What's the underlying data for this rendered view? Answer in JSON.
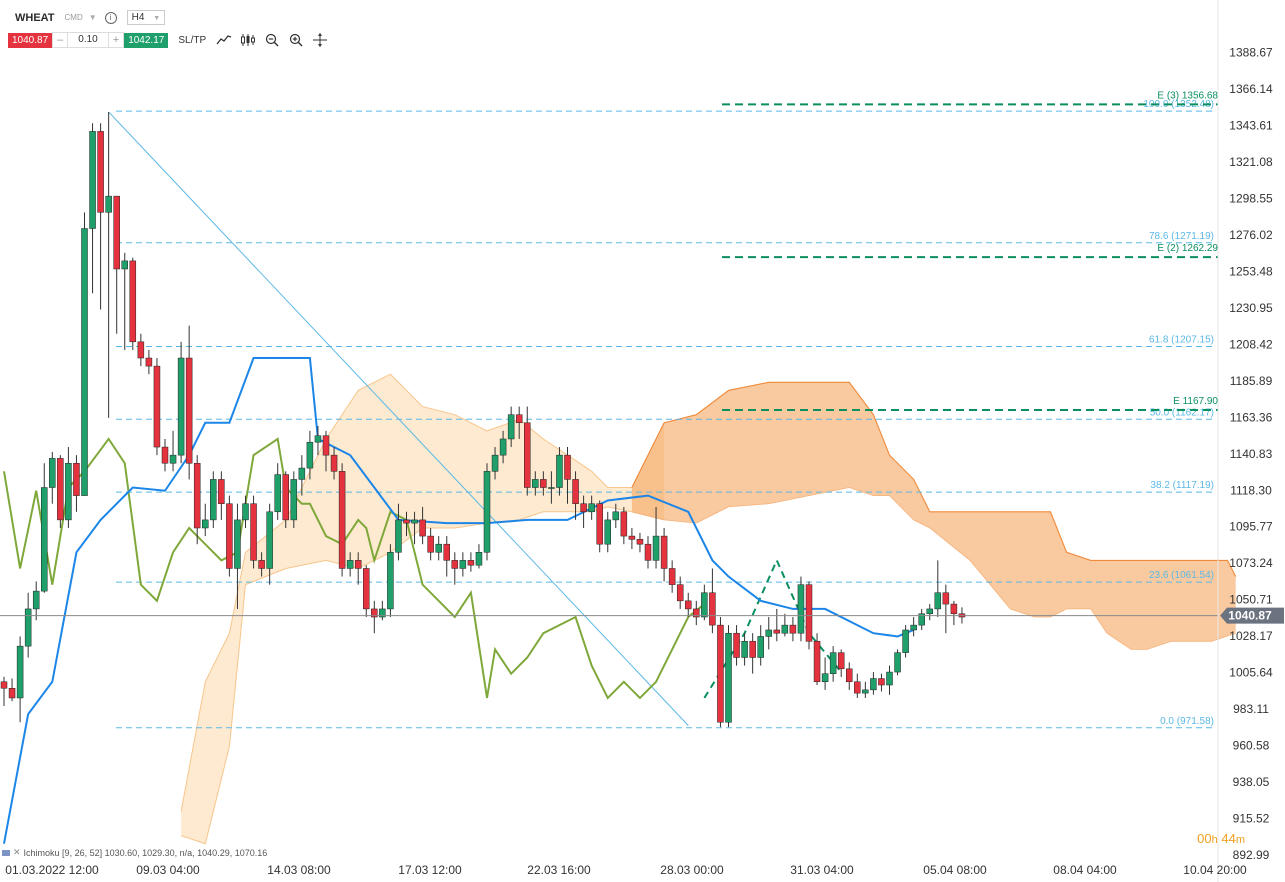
{
  "symbol": {
    "name": "WHEAT",
    "type": "CMD",
    "timeframe": "H4",
    "sell_price": "1040.87",
    "buy_price": "1042.17",
    "volume": "0.10",
    "sltp_label": "SL/TP",
    "minus": "–",
    "plus": "+"
  },
  "indicator": {
    "label": "Ichimoku [9, 26, 52] 1030.60, 1029.30, n/a, 1040.29, 1070.16",
    "close_glyph": "✕"
  },
  "timer": {
    "hours": "00",
    "h_unit": "h",
    "minutes": "44",
    "m_unit": "m"
  },
  "current_price_label": "1040.87",
  "chart_data": {
    "type": "candlestick",
    "instrument": "WHEAT",
    "timeframe": "H4",
    "ylim": [
      892.99,
      1400
    ],
    "y_ticks": [
      "1388.67",
      "1366.14",
      "1343.61",
      "1321.08",
      "1298.55",
      "1276.02",
      "1253.48",
      "1230.95",
      "1208.42",
      "1185.89",
      "1163.36",
      "1140.83",
      "1118.30",
      "1095.77",
      "1073.24",
      "1050.71",
      "1028.17",
      "1005.64",
      "983.11",
      "960.58",
      "938.05",
      "915.52",
      "892.99"
    ],
    "x_ticks": [
      "01.03.2022 12:00",
      "09.03 04:00",
      "14.03 08:00",
      "17.03 12:00",
      "22.03 16:00",
      "28.03 00:00",
      "31.03 04:00",
      "05.04 08:00",
      "08.04 04:00",
      "10.04 20:00"
    ],
    "colors": {
      "up": "#1fa06b",
      "down": "#e4333e",
      "tenkan": "#1c86e8",
      "chikou": "#7fa83a",
      "cloud_bull": "#fcd9aa",
      "cloud_bear": "#f5a55f",
      "fib": "#5bb8e6",
      "target": "#0c8f5e",
      "current": "#888888"
    },
    "fib_levels": [
      {
        "label": "100.0 (1352.48)",
        "value": 1352.48
      },
      {
        "label": "78.6 (1271.19)",
        "value": 1271.19
      },
      {
        "label": "61.8 (1207.15)",
        "value": 1207.15
      },
      {
        "label": "50.0 (1162.17)",
        "value": 1162.17
      },
      {
        "label": "38.2 (1117.19)",
        "value": 1117.19
      },
      {
        "label": "23.6 (1061.54)",
        "value": 1061.54
      },
      {
        "label": "0.0 (971.58)",
        "value": 971.58
      }
    ],
    "targets": [
      {
        "label": "E (3) 1356.68",
        "value": 1356.68
      },
      {
        "label": "E (2) 1262.29",
        "value": 1262.29
      },
      {
        "label": "E 1167.90",
        "value": 1167.9
      }
    ],
    "current_price": 1040.87,
    "candles": [
      [
        1000,
        996,
        1003,
        985
      ],
      [
        996,
        990,
        1002,
        988
      ],
      [
        990,
        1022,
        1028,
        975
      ],
      [
        1022,
        1045,
        1055,
        1015
      ],
      [
        1045,
        1056,
        1062,
        1038
      ],
      [
        1056,
        1120,
        1135,
        1055
      ],
      [
        1120,
        1138,
        1142,
        1110
      ],
      [
        1138,
        1100,
        1140,
        1095
      ],
      [
        1100,
        1135,
        1145,
        1095
      ],
      [
        1135,
        1115,
        1140,
        1105
      ],
      [
        1115,
        1280,
        1290,
        1210
      ],
      [
        1280,
        1340,
        1345,
        1240
      ],
      [
        1340,
        1290,
        1345,
        1230
      ],
      [
        1290,
        1300,
        1352,
        1163
      ],
      [
        1300,
        1255,
        1275,
        1215
      ],
      [
        1255,
        1260,
        1265,
        1205
      ],
      [
        1260,
        1210,
        1262,
        1205
      ],
      [
        1210,
        1200,
        1215,
        1195
      ],
      [
        1200,
        1195,
        1205,
        1190
      ],
      [
        1195,
        1145,
        1200,
        1140
      ],
      [
        1145,
        1135,
        1150,
        1130
      ],
      [
        1135,
        1140,
        1155,
        1130
      ],
      [
        1140,
        1200,
        1210,
        1135
      ],
      [
        1200,
        1135,
        1220,
        1125
      ],
      [
        1135,
        1095,
        1140,
        1085
      ],
      [
        1095,
        1100,
        1110,
        1090
      ],
      [
        1100,
        1125,
        1130,
        1095
      ],
      [
        1125,
        1110,
        1130,
        1100
      ],
      [
        1110,
        1070,
        1115,
        1065
      ],
      [
        1070,
        1100,
        1110,
        1045
      ],
      [
        1100,
        1110,
        1115,
        1095
      ],
      [
        1110,
        1075,
        1115,
        1070
      ],
      [
        1075,
        1070,
        1080,
        1065
      ],
      [
        1070,
        1105,
        1110,
        1060
      ],
      [
        1105,
        1128,
        1135,
        1100
      ],
      [
        1128,
        1100,
        1130,
        1095
      ],
      [
        1100,
        1125,
        1130,
        1095
      ],
      [
        1125,
        1132,
        1140,
        1115
      ],
      [
        1132,
        1148,
        1155,
        1125
      ],
      [
        1148,
        1152,
        1158,
        1140
      ],
      [
        1152,
        1140,
        1155,
        1130
      ],
      [
        1140,
        1130,
        1145,
        1125
      ],
      [
        1130,
        1070,
        1135,
        1065
      ],
      [
        1070,
        1075,
        1080,
        1065
      ],
      [
        1075,
        1070,
        1080,
        1060
      ],
      [
        1070,
        1045,
        1072,
        1040
      ],
      [
        1045,
        1040,
        1050,
        1030
      ],
      [
        1040,
        1045,
        1050,
        1038
      ],
      [
        1045,
        1080,
        1085,
        1040
      ],
      [
        1080,
        1100,
        1110,
        1075
      ],
      [
        1100,
        1098,
        1105,
        1090
      ],
      [
        1098,
        1100,
        1105,
        1085
      ],
      [
        1100,
        1090,
        1108,
        1085
      ],
      [
        1090,
        1080,
        1095,
        1075
      ],
      [
        1080,
        1085,
        1090,
        1075
      ],
      [
        1085,
        1075,
        1090,
        1065
      ],
      [
        1075,
        1070,
        1080,
        1060
      ],
      [
        1070,
        1075,
        1080,
        1065
      ],
      [
        1075,
        1072,
        1080,
        1068
      ],
      [
        1072,
        1080,
        1085,
        1070
      ],
      [
        1080,
        1130,
        1135,
        1075
      ],
      [
        1130,
        1140,
        1145,
        1125
      ],
      [
        1140,
        1150,
        1155,
        1135
      ],
      [
        1150,
        1165,
        1170,
        1145
      ],
      [
        1165,
        1160,
        1170,
        1150
      ],
      [
        1160,
        1120,
        1170,
        1115
      ],
      [
        1120,
        1125,
        1130,
        1115
      ],
      [
        1125,
        1120,
        1130,
        1115
      ],
      [
        1120,
        1120,
        1130,
        1110
      ],
      [
        1120,
        1140,
        1145,
        1115
      ],
      [
        1140,
        1125,
        1145,
        1110
      ],
      [
        1125,
        1110,
        1130,
        1100
      ],
      [
        1110,
        1105,
        1115,
        1095
      ],
      [
        1105,
        1110,
        1115,
        1100
      ],
      [
        1110,
        1085,
        1112,
        1080
      ],
      [
        1085,
        1100,
        1105,
        1080
      ],
      [
        1100,
        1105,
        1110,
        1095
      ],
      [
        1105,
        1090,
        1108,
        1085
      ],
      [
        1090,
        1088,
        1095,
        1082
      ],
      [
        1088,
        1085,
        1092,
        1080
      ],
      [
        1085,
        1075,
        1090,
        1070
      ],
      [
        1075,
        1090,
        1108,
        1070
      ],
      [
        1090,
        1070,
        1095,
        1062
      ],
      [
        1070,
        1060,
        1075,
        1055
      ],
      [
        1060,
        1050,
        1065,
        1045
      ],
      [
        1050,
        1045,
        1055,
        1040
      ],
      [
        1045,
        1040,
        1050,
        1035
      ],
      [
        1040,
        1055,
        1060,
        1038
      ],
      [
        1055,
        1035,
        1070,
        1030
      ],
      [
        1035,
        975,
        1040,
        972
      ],
      [
        975,
        1030,
        1035,
        972
      ],
      [
        1030,
        1015,
        1035,
        1010
      ],
      [
        1015,
        1025,
        1030,
        1010
      ],
      [
        1025,
        1015,
        1030,
        1005
      ],
      [
        1015,
        1028,
        1035,
        1010
      ],
      [
        1028,
        1032,
        1040,
        1020
      ],
      [
        1032,
        1030,
        1045,
        1025
      ],
      [
        1030,
        1035,
        1042,
        1028
      ],
      [
        1035,
        1030,
        1040,
        1025
      ],
      [
        1030,
        1060,
        1065,
        1025
      ],
      [
        1060,
        1025,
        1062,
        1020
      ],
      [
        1025,
        1000,
        1030,
        998
      ],
      [
        1000,
        1005,
        1015,
        995
      ],
      [
        1005,
        1018,
        1022,
        1000
      ],
      [
        1018,
        1008,
        1020,
        1003
      ],
      [
        1008,
        1000,
        1012,
        995
      ],
      [
        1000,
        993,
        1005,
        990
      ],
      [
        993,
        995,
        1000,
        990
      ],
      [
        995,
        1002,
        1006,
        992
      ],
      [
        1002,
        998,
        1005,
        994
      ],
      [
        998,
        1006,
        1010,
        992
      ],
      [
        1006,
        1018,
        1020,
        1004
      ],
      [
        1018,
        1032,
        1035,
        1015
      ],
      [
        1032,
        1035,
        1040,
        1028
      ],
      [
        1035,
        1042,
        1045,
        1032
      ],
      [
        1042,
        1045,
        1048,
        1038
      ],
      [
        1045,
        1055,
        1075,
        1040
      ],
      [
        1055,
        1048,
        1060,
        1030
      ],
      [
        1048,
        1042,
        1050,
        1035
      ],
      [
        1042,
        1040,
        1046,
        1036
      ]
    ],
    "cloud_top": [
      [
        22,
        920
      ],
      [
        25,
        1000
      ],
      [
        28,
        1030
      ],
      [
        30,
        1080
      ],
      [
        35,
        1100
      ],
      [
        40,
        1150
      ],
      [
        44,
        1180
      ],
      [
        48,
        1190
      ],
      [
        52,
        1170
      ],
      [
        56,
        1165
      ],
      [
        60,
        1155
      ],
      [
        64,
        1162
      ],
      [
        67,
        1150
      ],
      [
        70,
        1140
      ],
      [
        73,
        1130
      ],
      [
        75,
        1120
      ],
      [
        78,
        1120
      ],
      [
        82,
        1160
      ],
      [
        86,
        1165
      ],
      [
        90,
        1180
      ],
      [
        95,
        1185
      ],
      [
        100,
        1185
      ],
      [
        105,
        1185
      ],
      [
        108,
        1165
      ],
      [
        110,
        1140
      ],
      [
        113,
        1125
      ],
      [
        115,
        1105
      ],
      [
        120,
        1105
      ],
      [
        125,
        1105
      ],
      [
        130,
        1105
      ],
      [
        132,
        1080
      ],
      [
        135,
        1075
      ],
      [
        140,
        1075
      ],
      [
        145,
        1075
      ],
      [
        150,
        1075
      ],
      [
        152,
        1075
      ],
      [
        153,
        1065
      ]
    ],
    "cloud_bottom": [
      [
        22,
        905
      ],
      [
        25,
        900
      ],
      [
        28,
        960
      ],
      [
        30,
        1060
      ],
      [
        35,
        1070
      ],
      [
        40,
        1075
      ],
      [
        44,
        1070
      ],
      [
        48,
        1080
      ],
      [
        52,
        1095
      ],
      [
        56,
        1095
      ],
      [
        60,
        1098
      ],
      [
        64,
        1100
      ],
      [
        67,
        1105
      ],
      [
        70,
        1105
      ],
      [
        73,
        1105
      ],
      [
        75,
        1108
      ],
      [
        78,
        1105
      ],
      [
        82,
        1100
      ],
      [
        86,
        1098
      ],
      [
        90,
        1108
      ],
      [
        95,
        1110
      ],
      [
        100,
        1115
      ],
      [
        105,
        1120
      ],
      [
        108,
        1115
      ],
      [
        110,
        1115
      ],
      [
        113,
        1100
      ],
      [
        115,
        1095
      ],
      [
        120,
        1075
      ],
      [
        125,
        1045
      ],
      [
        128,
        1040
      ],
      [
        130,
        1040
      ],
      [
        132,
        1045
      ],
      [
        135,
        1045
      ],
      [
        137,
        1030
      ],
      [
        140,
        1020
      ],
      [
        142,
        1020
      ],
      [
        145,
        1025
      ],
      [
        150,
        1025
      ],
      [
        153,
        1030
      ]
    ],
    "tenkan": [
      [
        0,
        900
      ],
      [
        3,
        980
      ],
      [
        6,
        1000
      ],
      [
        9,
        1080
      ],
      [
        12,
        1100
      ],
      [
        16,
        1120
      ],
      [
        20,
        1118
      ],
      [
        23,
        1140
      ],
      [
        25,
        1160
      ],
      [
        28,
        1160
      ],
      [
        31,
        1200
      ],
      [
        38,
        1200
      ],
      [
        39,
        1150
      ],
      [
        43,
        1140
      ],
      [
        46,
        1120
      ],
      [
        49,
        1100
      ],
      [
        55,
        1098
      ],
      [
        60,
        1098
      ],
      [
        65,
        1100
      ],
      [
        70,
        1100
      ],
      [
        75,
        1112
      ],
      [
        80,
        1115
      ],
      [
        85,
        1105
      ],
      [
        88,
        1075
      ],
      [
        90,
        1065
      ],
      [
        94,
        1050
      ],
      [
        98,
        1045
      ],
      [
        102,
        1045
      ],
      [
        106,
        1035
      ],
      [
        108,
        1030
      ],
      [
        111,
        1028
      ],
      [
        113,
        1032
      ]
    ],
    "chikou": [
      [
        0,
        1130
      ],
      [
        2,
        1070
      ],
      [
        4,
        1118
      ],
      [
        6,
        1060
      ],
      [
        8,
        1120
      ],
      [
        10,
        1130
      ],
      [
        13,
        1150
      ],
      [
        15,
        1135
      ],
      [
        17,
        1060
      ],
      [
        19,
        1050
      ],
      [
        21,
        1080
      ],
      [
        23,
        1095
      ],
      [
        25,
        1085
      ],
      [
        27,
        1075
      ],
      [
        29,
        1080
      ],
      [
        31,
        1140
      ],
      [
        34,
        1150
      ],
      [
        35,
        1120
      ],
      [
        37,
        1110
      ],
      [
        38,
        1110
      ],
      [
        40,
        1090
      ],
      [
        42,
        1085
      ],
      [
        44,
        1100
      ],
      [
        45,
        1095
      ],
      [
        46,
        1075
      ],
      [
        48,
        1105
      ],
      [
        50,
        1100
      ],
      [
        52,
        1060
      ],
      [
        54,
        1050
      ],
      [
        56,
        1040
      ],
      [
        58,
        1055
      ],
      [
        60,
        990
      ],
      [
        61,
        1020
      ],
      [
        63,
        1005
      ],
      [
        65,
        1015
      ],
      [
        67,
        1030
      ],
      [
        69,
        1035
      ],
      [
        71,
        1040
      ],
      [
        73,
        1010
      ],
      [
        75,
        990
      ],
      [
        77,
        1000
      ],
      [
        79,
        990
      ],
      [
        81,
        1000
      ],
      [
        83,
        1020
      ],
      [
        85,
        1040
      ],
      [
        87,
        1048
      ]
    ],
    "trendline": [
      [
        13,
        1352
      ],
      [
        85,
        973
      ]
    ],
    "wave": [
      [
        87,
        990
      ],
      [
        92,
        1030
      ],
      [
        96,
        1075
      ],
      [
        100,
        1030
      ],
      [
        104,
        1006
      ]
    ]
  }
}
